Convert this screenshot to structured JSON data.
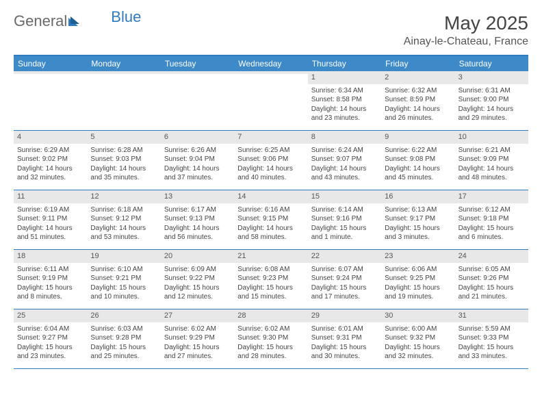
{
  "logo": {
    "part1": "General",
    "part2": "Blue"
  },
  "title": "May 2025",
  "location": "Ainay-le-Chateau, France",
  "colors": {
    "header_bar": "#3e8ac9",
    "border": "#2f7bbf",
    "daynum_bg": "#e8e8e8",
    "text": "#444444",
    "bg": "#ffffff"
  },
  "day_labels": [
    "Sunday",
    "Monday",
    "Tuesday",
    "Wednesday",
    "Thursday",
    "Friday",
    "Saturday"
  ],
  "weeks": [
    [
      {
        "n": "",
        "sr": "",
        "ss": "",
        "d1": "",
        "d2": ""
      },
      {
        "n": "",
        "sr": "",
        "ss": "",
        "d1": "",
        "d2": ""
      },
      {
        "n": "",
        "sr": "",
        "ss": "",
        "d1": "",
        "d2": ""
      },
      {
        "n": "",
        "sr": "",
        "ss": "",
        "d1": "",
        "d2": ""
      },
      {
        "n": "1",
        "sr": "Sunrise: 6:34 AM",
        "ss": "Sunset: 8:58 PM",
        "d1": "Daylight: 14 hours",
        "d2": "and 23 minutes."
      },
      {
        "n": "2",
        "sr": "Sunrise: 6:32 AM",
        "ss": "Sunset: 8:59 PM",
        "d1": "Daylight: 14 hours",
        "d2": "and 26 minutes."
      },
      {
        "n": "3",
        "sr": "Sunrise: 6:31 AM",
        "ss": "Sunset: 9:00 PM",
        "d1": "Daylight: 14 hours",
        "d2": "and 29 minutes."
      }
    ],
    [
      {
        "n": "4",
        "sr": "Sunrise: 6:29 AM",
        "ss": "Sunset: 9:02 PM",
        "d1": "Daylight: 14 hours",
        "d2": "and 32 minutes."
      },
      {
        "n": "5",
        "sr": "Sunrise: 6:28 AM",
        "ss": "Sunset: 9:03 PM",
        "d1": "Daylight: 14 hours",
        "d2": "and 35 minutes."
      },
      {
        "n": "6",
        "sr": "Sunrise: 6:26 AM",
        "ss": "Sunset: 9:04 PM",
        "d1": "Daylight: 14 hours",
        "d2": "and 37 minutes."
      },
      {
        "n": "7",
        "sr": "Sunrise: 6:25 AM",
        "ss": "Sunset: 9:06 PM",
        "d1": "Daylight: 14 hours",
        "d2": "and 40 minutes."
      },
      {
        "n": "8",
        "sr": "Sunrise: 6:24 AM",
        "ss": "Sunset: 9:07 PM",
        "d1": "Daylight: 14 hours",
        "d2": "and 43 minutes."
      },
      {
        "n": "9",
        "sr": "Sunrise: 6:22 AM",
        "ss": "Sunset: 9:08 PM",
        "d1": "Daylight: 14 hours",
        "d2": "and 45 minutes."
      },
      {
        "n": "10",
        "sr": "Sunrise: 6:21 AM",
        "ss": "Sunset: 9:09 PM",
        "d1": "Daylight: 14 hours",
        "d2": "and 48 minutes."
      }
    ],
    [
      {
        "n": "11",
        "sr": "Sunrise: 6:19 AM",
        "ss": "Sunset: 9:11 PM",
        "d1": "Daylight: 14 hours",
        "d2": "and 51 minutes."
      },
      {
        "n": "12",
        "sr": "Sunrise: 6:18 AM",
        "ss": "Sunset: 9:12 PM",
        "d1": "Daylight: 14 hours",
        "d2": "and 53 minutes."
      },
      {
        "n": "13",
        "sr": "Sunrise: 6:17 AM",
        "ss": "Sunset: 9:13 PM",
        "d1": "Daylight: 14 hours",
        "d2": "and 56 minutes."
      },
      {
        "n": "14",
        "sr": "Sunrise: 6:16 AM",
        "ss": "Sunset: 9:15 PM",
        "d1": "Daylight: 14 hours",
        "d2": "and 58 minutes."
      },
      {
        "n": "15",
        "sr": "Sunrise: 6:14 AM",
        "ss": "Sunset: 9:16 PM",
        "d1": "Daylight: 15 hours",
        "d2": "and 1 minute."
      },
      {
        "n": "16",
        "sr": "Sunrise: 6:13 AM",
        "ss": "Sunset: 9:17 PM",
        "d1": "Daylight: 15 hours",
        "d2": "and 3 minutes."
      },
      {
        "n": "17",
        "sr": "Sunrise: 6:12 AM",
        "ss": "Sunset: 9:18 PM",
        "d1": "Daylight: 15 hours",
        "d2": "and 6 minutes."
      }
    ],
    [
      {
        "n": "18",
        "sr": "Sunrise: 6:11 AM",
        "ss": "Sunset: 9:19 PM",
        "d1": "Daylight: 15 hours",
        "d2": "and 8 minutes."
      },
      {
        "n": "19",
        "sr": "Sunrise: 6:10 AM",
        "ss": "Sunset: 9:21 PM",
        "d1": "Daylight: 15 hours",
        "d2": "and 10 minutes."
      },
      {
        "n": "20",
        "sr": "Sunrise: 6:09 AM",
        "ss": "Sunset: 9:22 PM",
        "d1": "Daylight: 15 hours",
        "d2": "and 12 minutes."
      },
      {
        "n": "21",
        "sr": "Sunrise: 6:08 AM",
        "ss": "Sunset: 9:23 PM",
        "d1": "Daylight: 15 hours",
        "d2": "and 15 minutes."
      },
      {
        "n": "22",
        "sr": "Sunrise: 6:07 AM",
        "ss": "Sunset: 9:24 PM",
        "d1": "Daylight: 15 hours",
        "d2": "and 17 minutes."
      },
      {
        "n": "23",
        "sr": "Sunrise: 6:06 AM",
        "ss": "Sunset: 9:25 PM",
        "d1": "Daylight: 15 hours",
        "d2": "and 19 minutes."
      },
      {
        "n": "24",
        "sr": "Sunrise: 6:05 AM",
        "ss": "Sunset: 9:26 PM",
        "d1": "Daylight: 15 hours",
        "d2": "and 21 minutes."
      }
    ],
    [
      {
        "n": "25",
        "sr": "Sunrise: 6:04 AM",
        "ss": "Sunset: 9:27 PM",
        "d1": "Daylight: 15 hours",
        "d2": "and 23 minutes."
      },
      {
        "n": "26",
        "sr": "Sunrise: 6:03 AM",
        "ss": "Sunset: 9:28 PM",
        "d1": "Daylight: 15 hours",
        "d2": "and 25 minutes."
      },
      {
        "n": "27",
        "sr": "Sunrise: 6:02 AM",
        "ss": "Sunset: 9:29 PM",
        "d1": "Daylight: 15 hours",
        "d2": "and 27 minutes."
      },
      {
        "n": "28",
        "sr": "Sunrise: 6:02 AM",
        "ss": "Sunset: 9:30 PM",
        "d1": "Daylight: 15 hours",
        "d2": "and 28 minutes."
      },
      {
        "n": "29",
        "sr": "Sunrise: 6:01 AM",
        "ss": "Sunset: 9:31 PM",
        "d1": "Daylight: 15 hours",
        "d2": "and 30 minutes."
      },
      {
        "n": "30",
        "sr": "Sunrise: 6:00 AM",
        "ss": "Sunset: 9:32 PM",
        "d1": "Daylight: 15 hours",
        "d2": "and 32 minutes."
      },
      {
        "n": "31",
        "sr": "Sunrise: 5:59 AM",
        "ss": "Sunset: 9:33 PM",
        "d1": "Daylight: 15 hours",
        "d2": "and 33 minutes."
      }
    ]
  ]
}
